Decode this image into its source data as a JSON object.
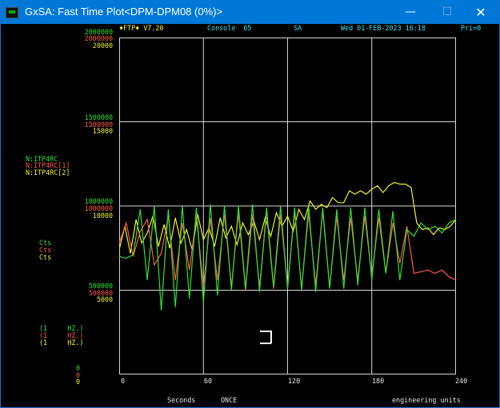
{
  "window": {
    "title": "GxSA: Fast Time Plot<DPM-DPM08 (0%)>",
    "controls": {
      "minimize": "—",
      "maximize": "☐",
      "close": "✕"
    }
  },
  "header": {
    "app": "♦FTP♦ V7.20",
    "console": "Console  65",
    "mode": "SA",
    "datetime": "Wed 01-FEB-2023 16:18",
    "priority": "Pri=0"
  },
  "y_axis": {
    "ticks": [
      {
        "green": "2000000",
        "red": "2000000",
        "yellow": "20000"
      },
      {
        "green": "1500000",
        "red": "1500000",
        "yellow": "15000"
      },
      {
        "green": "1000000",
        "red": "1000000",
        "yellow": "10000"
      },
      {
        "green": "500000",
        "red": "500000",
        "yellow": "5000"
      },
      {
        "green": "0",
        "red": "0",
        "yellow": "0"
      }
    ]
  },
  "devices": [
    {
      "name": "N:ITP4RC",
      "units": "Cts",
      "rate": "(1     HZ.)",
      "color": "#f0f020"
    },
    {
      "name": "N:ITP4RC[1]",
      "units": "Cts",
      "rate": "(1     HZ.)",
      "color": "#ff5a4a"
    },
    {
      "name": "N:ITP4RC[2]",
      "units": "Cts",
      "rate": "(1     HZ.)",
      "color": "#30e030"
    }
  ],
  "x_axis": {
    "ticks": [
      "0",
      "60",
      "120",
      "180",
      "240"
    ],
    "label": "Seconds",
    "mode": "ONCE"
  },
  "footer": {
    "units_mode": "engineering units"
  },
  "chart_data": {
    "type": "line",
    "x_range": [
      0,
      240
    ],
    "y_range_scaled": [
      0,
      2000000
    ],
    "grid": true,
    "series": [
      {
        "name": "N:ITP4RC",
        "color": "#f0f020",
        "y_scale": [
          0,
          20000
        ],
        "points": [
          [
            0,
            7400
          ],
          [
            4,
            8800
          ],
          [
            8,
            7200
          ],
          [
            12,
            9200
          ],
          [
            16,
            7800
          ],
          [
            20,
            8400
          ],
          [
            24,
            9400
          ],
          [
            28,
            7600
          ],
          [
            32,
            8900
          ],
          [
            36,
            7500
          ],
          [
            40,
            9300
          ],
          [
            44,
            7800
          ],
          [
            48,
            8600
          ],
          [
            52,
            7400
          ],
          [
            56,
            9500
          ],
          [
            60,
            8000
          ],
          [
            64,
            8700
          ],
          [
            68,
            7600
          ],
          [
            72,
            9300
          ],
          [
            76,
            8100
          ],
          [
            80,
            8800
          ],
          [
            84,
            7700
          ],
          [
            88,
            9000
          ],
          [
            92,
            8300
          ],
          [
            96,
            9100
          ],
          [
            100,
            8000
          ],
          [
            104,
            9300
          ],
          [
            108,
            8200
          ],
          [
            112,
            9600
          ],
          [
            116,
            8800
          ],
          [
            120,
            9400
          ],
          [
            124,
            8500
          ],
          [
            128,
            9800
          ],
          [
            132,
            9200
          ],
          [
            136,
            10300
          ],
          [
            140,
            9800
          ],
          [
            144,
            10100
          ],
          [
            148,
            9900
          ],
          [
            152,
            10500
          ],
          [
            156,
            10200
          ],
          [
            160,
            10200
          ],
          [
            164,
            10900
          ],
          [
            168,
            10700
          ],
          [
            172,
            10900
          ],
          [
            176,
            10700
          ],
          [
            180,
            11000
          ],
          [
            184,
            11200
          ],
          [
            188,
            10800
          ],
          [
            192,
            11200
          ],
          [
            196,
            11400
          ],
          [
            200,
            11300
          ],
          [
            204,
            11300
          ],
          [
            208,
            11100
          ],
          [
            212,
            9000
          ],
          [
            216,
            8600
          ],
          [
            220,
            8700
          ],
          [
            224,
            8300
          ],
          [
            228,
            8700
          ],
          [
            232,
            8600
          ],
          [
            236,
            8800
          ],
          [
            240,
            9200
          ]
        ]
      },
      {
        "name": "N:ITP4RC[1]",
        "color": "#ff5a4a",
        "y_scale": [
          0,
          2000000
        ],
        "points": [
          [
            0,
            780000
          ],
          [
            5,
            900000
          ],
          [
            10,
            700000
          ],
          [
            15,
            850000
          ],
          [
            20,
            920000
          ],
          [
            25,
            650000
          ],
          [
            30,
            720000
          ],
          [
            35,
            940000
          ],
          [
            40,
            560000
          ],
          [
            45,
            900000
          ],
          [
            50,
            620000
          ],
          [
            55,
            940000
          ],
          [
            60,
            520000
          ],
          [
            65,
            930000
          ],
          [
            70,
            560000
          ],
          [
            75,
            950000
          ],
          [
            80,
            520000
          ],
          [
            85,
            960000
          ],
          [
            90,
            500000
          ],
          [
            95,
            950000
          ],
          [
            100,
            520000
          ],
          [
            105,
            960000
          ],
          [
            110,
            510000
          ],
          [
            115,
            950000
          ],
          [
            120,
            520000
          ],
          [
            125,
            970000
          ],
          [
            130,
            510000
          ],
          [
            135,
            960000
          ],
          [
            140,
            530000
          ],
          [
            145,
            970000
          ],
          [
            150,
            520000
          ],
          [
            155,
            940000
          ],
          [
            160,
            560000
          ],
          [
            165,
            930000
          ],
          [
            170,
            560000
          ],
          [
            175,
            940000
          ],
          [
            180,
            580000
          ],
          [
            185,
            930000
          ],
          [
            190,
            600000
          ],
          [
            195,
            900000
          ],
          [
            200,
            660000
          ],
          [
            205,
            880000
          ],
          [
            210,
            600000
          ],
          [
            215,
            610000
          ],
          [
            220,
            620000
          ],
          [
            225,
            600000
          ],
          [
            230,
            620000
          ],
          [
            235,
            580000
          ],
          [
            240,
            560000
          ]
        ]
      },
      {
        "name": "N:ITP4RC[2]",
        "color": "#30e030",
        "y_scale": [
          0,
          2000000
        ],
        "points": [
          [
            0,
            700000
          ],
          [
            5,
            690000
          ],
          [
            10,
            710000
          ],
          [
            15,
            980000
          ],
          [
            20,
            560000
          ],
          [
            25,
            1000000
          ],
          [
            30,
            380000
          ],
          [
            35,
            980000
          ],
          [
            40,
            400000
          ],
          [
            45,
            1000000
          ],
          [
            50,
            450000
          ],
          [
            55,
            990000
          ],
          [
            60,
            430000
          ],
          [
            65,
            1010000
          ],
          [
            70,
            470000
          ],
          [
            75,
            1000000
          ],
          [
            80,
            500000
          ],
          [
            85,
            1000000
          ],
          [
            90,
            510000
          ],
          [
            95,
            1010000
          ],
          [
            100,
            490000
          ],
          [
            105,
            990000
          ],
          [
            110,
            520000
          ],
          [
            115,
            1000000
          ],
          [
            120,
            510000
          ],
          [
            125,
            990000
          ],
          [
            130,
            500000
          ],
          [
            135,
            1000000
          ],
          [
            140,
            490000
          ],
          [
            145,
            990000
          ],
          [
            150,
            510000
          ],
          [
            155,
            980000
          ],
          [
            160,
            510000
          ],
          [
            165,
            990000
          ],
          [
            170,
            530000
          ],
          [
            175,
            990000
          ],
          [
            180,
            560000
          ],
          [
            185,
            980000
          ],
          [
            190,
            600000
          ],
          [
            195,
            970000
          ],
          [
            200,
            560000
          ],
          [
            205,
            860000
          ],
          [
            210,
            820000
          ],
          [
            215,
            900000
          ],
          [
            220,
            860000
          ],
          [
            225,
            880000
          ],
          [
            230,
            840000
          ],
          [
            235,
            900000
          ],
          [
            240,
            920000
          ]
        ]
      }
    ]
  }
}
